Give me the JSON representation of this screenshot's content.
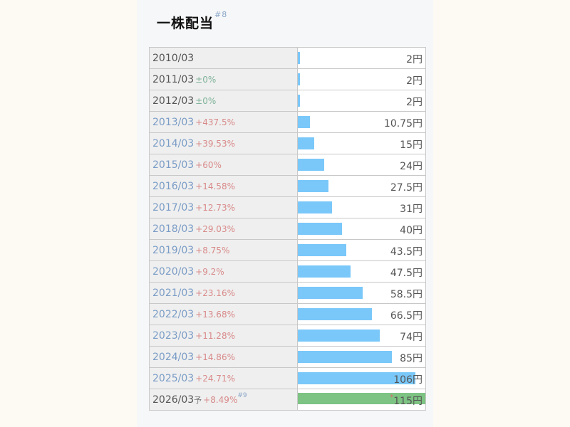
{
  "title": "一株配当",
  "title_ref": "#8",
  "unit": "円",
  "chart_data": {
    "type": "bar",
    "orientation": "horizontal",
    "title": "一株配当",
    "categories": [
      "2010/03",
      "2011/03",
      "2012/03",
      "2013/03",
      "2014/03",
      "2015/03",
      "2016/03",
      "2017/03",
      "2018/03",
      "2019/03",
      "2020/03",
      "2021/03",
      "2022/03",
      "2023/03",
      "2024/03",
      "2025/03",
      "2026/03"
    ],
    "values": [
      2,
      2,
      2,
      10.75,
      15,
      24,
      27.5,
      31,
      40,
      43.5,
      47.5,
      58.5,
      66.5,
      74,
      85,
      106,
      115
    ],
    "value_labels": [
      "2",
      "2",
      "2",
      "10.75",
      "15",
      "24",
      "27.5",
      "31",
      "40",
      "43.5",
      "47.5",
      "58.5",
      "66.5",
      "74",
      "85",
      "106",
      "115"
    ],
    "changes": [
      "",
      "±0%",
      "±0%",
      "+437.5%",
      "+39.53%",
      "+60%",
      "+14.58%",
      "+12.73%",
      "+29.03%",
      "+8.75%",
      "+9.2%",
      "+23.16%",
      "+13.68%",
      "+11.28%",
      "+14.86%",
      "+24.71%",
      "+8.49%"
    ],
    "xlim": [
      0,
      115
    ],
    "forecast_index": 16,
    "forecast_mark": "予",
    "forecast_ref": "#9",
    "forecast_star": "*",
    "colors": {
      "bar": "#7ac8f9",
      "forecast": "#7dc383"
    }
  }
}
